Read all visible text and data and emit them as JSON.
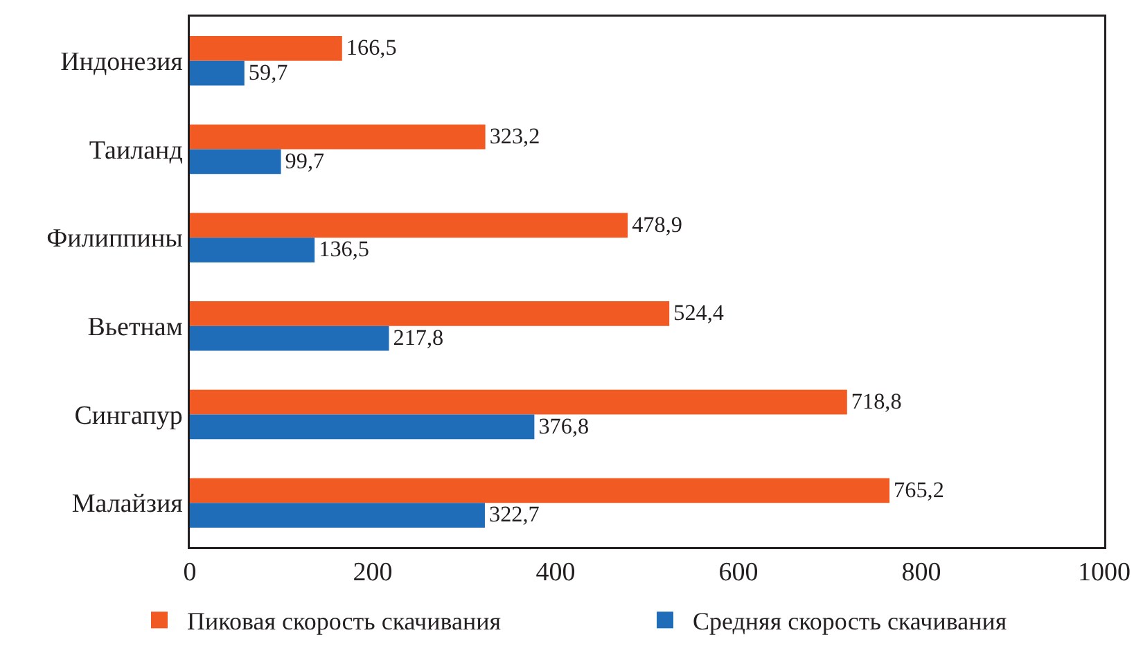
{
  "chart_data": {
    "type": "bar",
    "orientation": "horizontal",
    "categories": [
      "Индонезия",
      "Таиланд",
      "Филиппины",
      "Вьетнам",
      "Сингапур",
      "Малайзия"
    ],
    "series": [
      {
        "name": "Пиковая скорость скачивания",
        "color": "#f15a22",
        "values": [
          166.5,
          323.2,
          478.9,
          524.4,
          718.8,
          765.2
        ],
        "value_labels": [
          "166,5",
          "323,2",
          "478,9",
          "524,4",
          "718,8",
          "765,2"
        ]
      },
      {
        "name": "Средняя скорость скачивания",
        "color": "#1f6db8",
        "values": [
          59.7,
          99.7,
          136.5,
          217.8,
          376.8,
          322.7
        ],
        "value_labels": [
          "59,7",
          "99,7",
          "136,5",
          "217,8",
          "376,8",
          "322,7"
        ]
      }
    ],
    "xlim": [
      0,
      1000
    ],
    "xticks": [
      0,
      200,
      400,
      600,
      800,
      1000
    ],
    "grid": false,
    "legend": "bottom"
  }
}
